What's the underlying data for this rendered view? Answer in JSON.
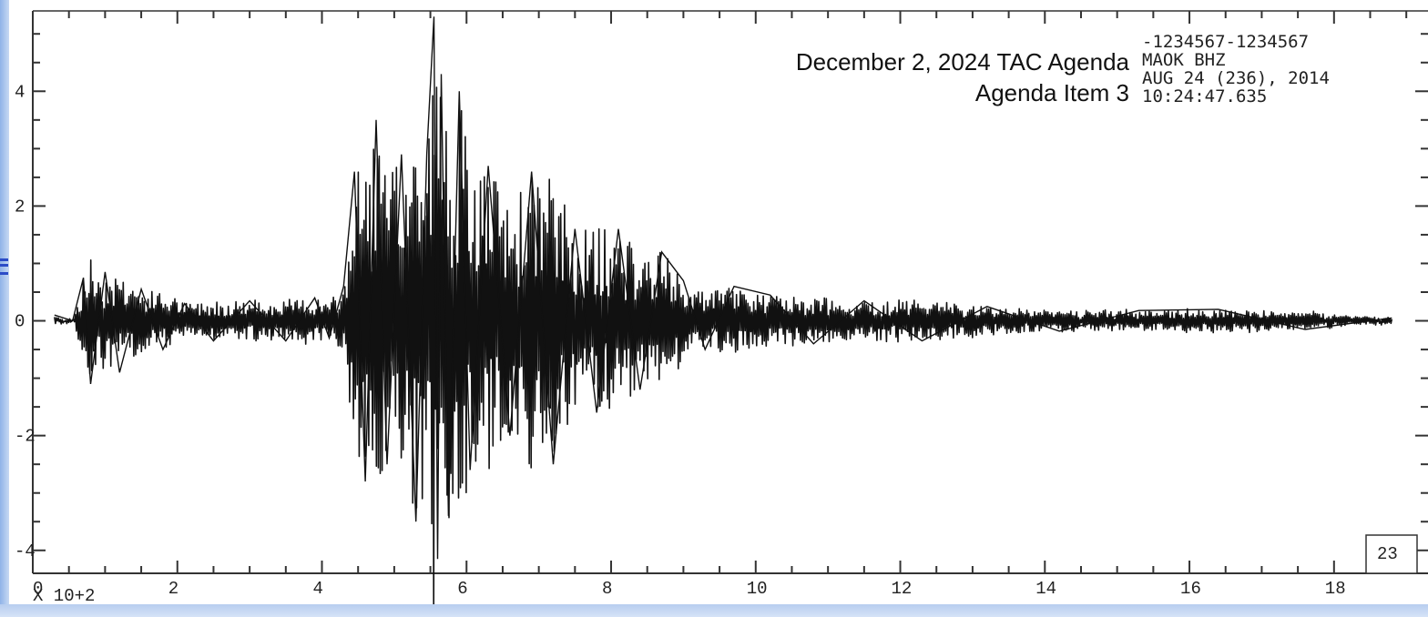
{
  "chart_data": {
    "type": "line",
    "title": "",
    "xlabel": "",
    "ylabel": "",
    "x_multiplier_label": "X  10+2",
    "xlim": [
      0,
      19.3
    ],
    "ylim": [
      -4.4,
      5.4
    ],
    "x_ticks": [
      0,
      2,
      4,
      6,
      8,
      10,
      12,
      14,
      16,
      18
    ],
    "x_tick_labels": [
      "0",
      "2",
      "4",
      "6",
      "8",
      "10",
      "12",
      "14",
      "16",
      "18"
    ],
    "y_ticks": [
      -4,
      -2,
      0,
      2,
      4
    ],
    "y_tick_labels": [
      "-4",
      "-2",
      "0",
      "2",
      "4"
    ],
    "grid": false,
    "series": [
      {
        "x": [
          0.3,
          0.55,
          0.7,
          0.8,
          1.0,
          1.2,
          1.5,
          1.8,
          2.1,
          2.5,
          3.0,
          3.5,
          3.9,
          4.1,
          4.3,
          4.45,
          4.6,
          4.75,
          4.9,
          5.1,
          5.3,
          5.45,
          5.55,
          5.6,
          5.65,
          5.75,
          5.9,
          6.05,
          6.3,
          6.6,
          6.9,
          7.2,
          7.5,
          7.8,
          8.1,
          8.4,
          8.7,
          9.0,
          9.3,
          9.7,
          10.2,
          10.8,
          11.5,
          12.3,
          13.2,
          14.2,
          15.3,
          16.4,
          17.6,
          18.8
        ],
        "y_envelope": [
          0.1,
          0.0,
          0.75,
          -1.1,
          0.85,
          -0.9,
          0.55,
          -0.5,
          0.3,
          -0.35,
          0.35,
          -0.35,
          0.4,
          -0.3,
          0.6,
          2.6,
          -2.8,
          3.5,
          -2.5,
          2.9,
          -3.5,
          2.9,
          5.3,
          -4.15,
          4.3,
          -3.4,
          4.0,
          -2.6,
          2.7,
          -2.0,
          2.6,
          -2.5,
          1.6,
          -1.6,
          1.6,
          -1.2,
          1.2,
          0.7,
          -0.5,
          0.6,
          0.45,
          -0.4,
          0.35,
          -0.35,
          0.25,
          -0.18,
          0.18,
          0.2,
          -0.15,
          0.05
        ],
        "description": "seismic waveform; noise-burst waveform with envelope through listed peaks"
      }
    ],
    "annotations": {
      "station_lines": [
        "-1234567-1234567",
        "MAOK   BHZ",
        "AUG 24 (236), 2014",
        "10:24:47.635"
      ],
      "agenda_lines": [
        "December 2, 2024 TAC Agenda",
        "Agenda Item 3"
      ],
      "box_label": "23"
    },
    "colors": {
      "trace": "#111111",
      "axes": "#333333",
      "accent": "#2b4cc7"
    }
  }
}
